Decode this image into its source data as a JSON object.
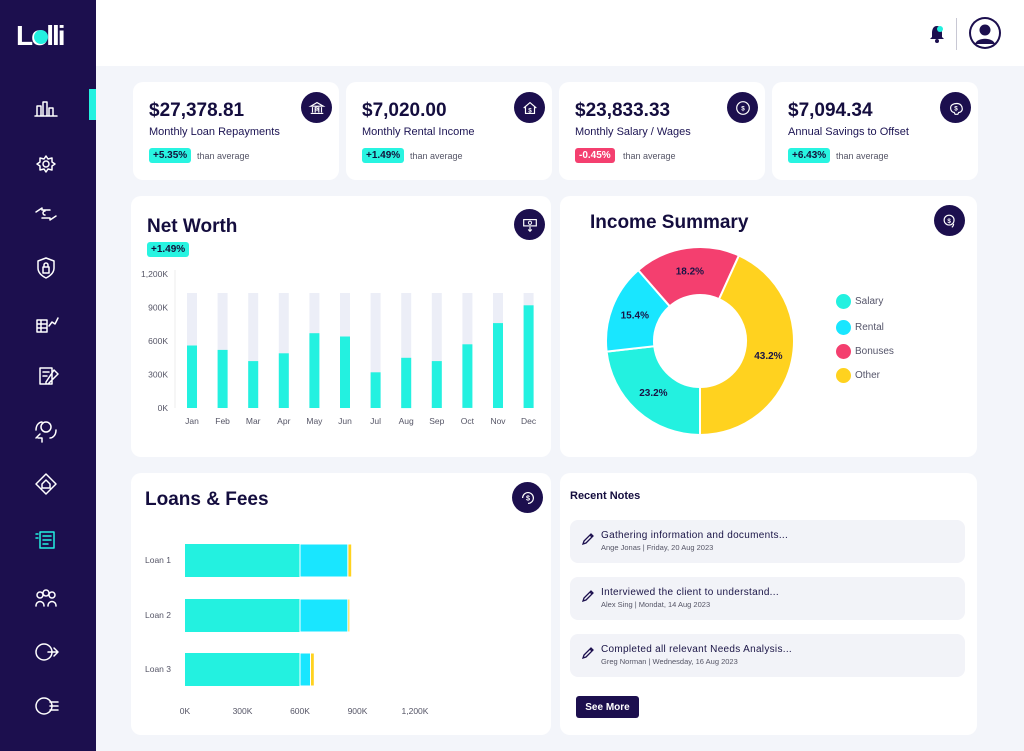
{
  "app": {
    "logo_text": "Lolli"
  },
  "sidebar": {
    "items": [
      {
        "icon": "bar-chart-icon"
      },
      {
        "icon": "settings-gear-icon"
      },
      {
        "icon": "exchange-arrows-icon"
      },
      {
        "icon": "security-lock-icon"
      },
      {
        "icon": "building-chart-icon"
      },
      {
        "icon": "document-dollar-icon"
      },
      {
        "icon": "money-home-cycle-icon"
      },
      {
        "icon": "network-home-icon"
      },
      {
        "icon": "notes-list-icon"
      },
      {
        "icon": "group-users-icon"
      },
      {
        "icon": "dollar-transfer-icon"
      },
      {
        "icon": "dollar-lines-icon"
      }
    ],
    "active_index": 0
  },
  "stats": [
    {
      "value": "$27,378.81",
      "label": "Monthly Loan Repayments",
      "change": "+5.35%",
      "direction": "up",
      "note": "than average",
      "icon": "bank-icon"
    },
    {
      "value": "$7,020.00",
      "label": "Monthly Rental Income",
      "change": "+1.49%",
      "direction": "up",
      "note": "than average",
      "icon": "house-dollar-icon"
    },
    {
      "value": "$23,833.33",
      "label": "Monthly Salary / Wages",
      "change": "-0.45%",
      "direction": "down",
      "note": "than average",
      "icon": "dollar-coin-icon"
    },
    {
      "value": "$7,094.34",
      "label": "Annual Savings to Offset",
      "change": "+6.43%",
      "direction": "up",
      "note": "than average",
      "icon": "piggy-bank-icon"
    }
  ],
  "net_worth": {
    "title": "Net Worth",
    "change": "+1.49%",
    "icon": "cash-down-icon"
  },
  "income_summary": {
    "title": "Income Summary",
    "icon": "dollar-refresh-icon"
  },
  "loans": {
    "title": "Loans & Fees",
    "icon": "dollar-cycle-icon"
  },
  "notes": {
    "title": "Recent Notes",
    "items": [
      {
        "title": "Gathering information and documents...",
        "meta": "Ange Jonas | Friday, 20 Aug 2023"
      },
      {
        "title": "Interviewed the client to understand...",
        "meta": "Alex Sing | Mondat, 14 Aug 2023"
      },
      {
        "title": "Completed all relevant Needs Analysis...",
        "meta": "Greg Norman | Wednesday, 16 Aug 2023"
      }
    ],
    "see_more_label": "See More"
  },
  "colors": {
    "navy": "#1c0f4e",
    "cyan": "#23f1e0",
    "aqua": "#19e6ff",
    "pink": "#f43f6f",
    "yellow": "#ffd21f",
    "track": "#eceef7"
  },
  "chart_data": [
    {
      "type": "bar",
      "categories": [
        "Jan",
        "Feb",
        "Mar",
        "Apr",
        "May",
        "Jun",
        "Jul",
        "Aug",
        "Sep",
        "Oct",
        "Nov",
        "Dec"
      ],
      "series": [
        {
          "values": [
            1030000,
            1030000,
            1030000,
            1030000,
            1030000,
            1030000,
            1030000,
            1030000,
            1030000,
            1030000,
            1030000,
            1030000
          ]
        },
        {
          "values": [
            560000,
            520000,
            420000,
            490000,
            670000,
            640000,
            320000,
            450000,
            420000,
            570000,
            760000,
            920000
          ]
        }
      ],
      "y_ticks": [
        "0K",
        "300K",
        "600K",
        "900K",
        "1,200K"
      ],
      "ylim": [
        0,
        1200000
      ]
    },
    {
      "type": "pie",
      "slices": [
        {
          "label": "Salary",
          "value": 23.2,
          "text": "23.2%"
        },
        {
          "label": "Rental",
          "value": 15.4,
          "text": "15.4%"
        },
        {
          "label": "Bonuses",
          "value": 18.2,
          "text": "18.2%"
        },
        {
          "label": "Other",
          "value": 43.2,
          "text": "43.2%"
        }
      ]
    },
    {
      "type": "bar",
      "orientation": "horizontal",
      "stacked": true,
      "categories": [
        "Loan 1",
        "Loan 2",
        "Loan 3"
      ],
      "series": [
        {
          "values": [
            600000,
            600000,
            600000
          ]
        },
        {
          "values": [
            250000,
            250000,
            55000
          ]
        },
        {
          "values": [
            20000,
            10000,
            20000
          ]
        }
      ],
      "x_ticks": [
        "0K",
        "300K",
        "600K",
        "900K",
        "1,200K"
      ],
      "xlim": [
        0,
        1200000
      ]
    }
  ]
}
